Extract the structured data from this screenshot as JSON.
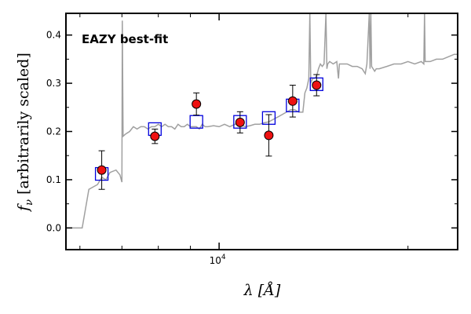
{
  "chart_data": {
    "type": "scatter",
    "ylabel_parts": [
      "f",
      "ν",
      " [arbitrarily scaled]"
    ],
    "xlabel_parts": [
      "λ ",
      "[Å]"
    ],
    "annotation": "EAZY best-fit",
    "xscale": "log",
    "xlim": [
      5700,
      24000
    ],
    "ylim": [
      -0.045,
      0.445
    ],
    "y_ticks": [
      0.0,
      0.1,
      0.2,
      0.3,
      0.4
    ],
    "y_tick_labels": [
      "0.0",
      "0.1",
      "0.2",
      "0.3",
      "0.4"
    ],
    "x_tick_labels": [
      {
        "value": 10000,
        "base": "10",
        "exp": "4"
      }
    ],
    "grid": false,
    "colors": {
      "template": "#a0a0a0",
      "model_box": "#0000dd",
      "observed": "#ee1111",
      "annotation": "#ee1111"
    },
    "series": [
      {
        "kind": "observed",
        "points": [
          {
            "x": 6500,
            "y": 0.12,
            "err": 0.04
          },
          {
            "x": 7900,
            "y": 0.19,
            "err": 0.015
          },
          {
            "x": 9200,
            "y": 0.257,
            "err": 0.023
          },
          {
            "x": 10800,
            "y": 0.219,
            "err": 0.022
          },
          {
            "x": 12000,
            "y": 0.192,
            "err": 0.043
          },
          {
            "x": 13100,
            "y": 0.263,
            "err": 0.033
          },
          {
            "x": 14300,
            "y": 0.296,
            "err": 0.022
          }
        ]
      },
      {
        "kind": "model",
        "points": [
          {
            "x": 6500,
            "y": 0.112
          },
          {
            "x": 7900,
            "y": 0.205
          },
          {
            "x": 9200,
            "y": 0.22
          },
          {
            "x": 10800,
            "y": 0.22
          },
          {
            "x": 12000,
            "y": 0.228
          },
          {
            "x": 13100,
            "y": 0.254
          },
          {
            "x": 14300,
            "y": 0.298
          }
        ]
      },
      {
        "kind": "template",
        "points": [
          [
            5700,
            0.0
          ],
          [
            5900,
            0.0
          ],
          [
            6050,
            0.0
          ],
          [
            6200,
            0.08
          ],
          [
            6300,
            0.085
          ],
          [
            6400,
            0.09
          ],
          [
            6500,
            0.105
          ],
          [
            6600,
            0.1
          ],
          [
            6700,
            0.115
          ],
          [
            6850,
            0.12
          ],
          [
            6950,
            0.11
          ],
          [
            7000,
            0.095
          ],
          [
            7010,
            0.43
          ],
          [
            7030,
            0.19
          ],
          [
            7100,
            0.195
          ],
          [
            7200,
            0.2
          ],
          [
            7300,
            0.21
          ],
          [
            7400,
            0.205
          ],
          [
            7500,
            0.21
          ],
          [
            7600,
            0.21
          ],
          [
            7700,
            0.205
          ],
          [
            7800,
            0.21
          ],
          [
            7900,
            0.21
          ],
          [
            8000,
            0.215
          ],
          [
            8100,
            0.21
          ],
          [
            8200,
            0.215
          ],
          [
            8300,
            0.21
          ],
          [
            8400,
            0.21
          ],
          [
            8500,
            0.205
          ],
          [
            8600,
            0.215
          ],
          [
            8700,
            0.21
          ],
          [
            8800,
            0.21
          ],
          [
            8900,
            0.215
          ],
          [
            9000,
            0.21
          ],
          [
            9100,
            0.21
          ],
          [
            9200,
            0.21
          ],
          [
            9300,
            0.205
          ],
          [
            9400,
            0.215
          ],
          [
            9500,
            0.21
          ],
          [
            9600,
            0.21
          ],
          [
            9800,
            0.212
          ],
          [
            10000,
            0.21
          ],
          [
            10200,
            0.215
          ],
          [
            10400,
            0.21
          ],
          [
            10600,
            0.215
          ],
          [
            10800,
            0.215
          ],
          [
            11000,
            0.21
          ],
          [
            11200,
            0.212
          ],
          [
            11400,
            0.215
          ],
          [
            11600,
            0.215
          ],
          [
            11800,
            0.218
          ],
          [
            12000,
            0.22
          ],
          [
            12200,
            0.225
          ],
          [
            12400,
            0.23
          ],
          [
            12600,
            0.235
          ],
          [
            12800,
            0.24
          ],
          [
            13000,
            0.245
          ],
          [
            13200,
            0.245
          ],
          [
            13400,
            0.24
          ],
          [
            13600,
            0.24
          ],
          [
            13700,
            0.28
          ],
          [
            13800,
            0.29
          ],
          [
            13900,
            0.31
          ],
          [
            13950,
            0.445
          ],
          [
            14000,
            0.3
          ],
          [
            14100,
            0.31
          ],
          [
            14200,
            0.31
          ],
          [
            14300,
            0.315
          ],
          [
            14400,
            0.33
          ],
          [
            14500,
            0.34
          ],
          [
            14600,
            0.335
          ],
          [
            14700,
            0.34
          ],
          [
            14800,
            0.445
          ],
          [
            14850,
            0.33
          ],
          [
            14900,
            0.34
          ],
          [
            15000,
            0.345
          ],
          [
            15200,
            0.34
          ],
          [
            15400,
            0.345
          ],
          [
            15500,
            0.31
          ],
          [
            15550,
            0.34
          ],
          [
            15700,
            0.34
          ],
          [
            16000,
            0.34
          ],
          [
            16300,
            0.335
          ],
          [
            16600,
            0.335
          ],
          [
            16900,
            0.33
          ],
          [
            17100,
            0.32
          ],
          [
            17200,
            0.34
          ],
          [
            17350,
            0.445
          ],
          [
            17400,
            0.33
          ],
          [
            17450,
            0.445
          ],
          [
            17500,
            0.335
          ],
          [
            17600,
            0.33
          ],
          [
            17700,
            0.325
          ],
          [
            17800,
            0.33
          ],
          [
            18000,
            0.33
          ],
          [
            18500,
            0.335
          ],
          [
            19000,
            0.34
          ],
          [
            19500,
            0.34
          ],
          [
            20000,
            0.345
          ],
          [
            20500,
            0.34
          ],
          [
            21000,
            0.345
          ],
          [
            21200,
            0.34
          ],
          [
            21250,
            0.445
          ],
          [
            21300,
            0.345
          ],
          [
            21700,
            0.345
          ],
          [
            22200,
            0.35
          ],
          [
            22700,
            0.35
          ],
          [
            23200,
            0.355
          ],
          [
            23700,
            0.36
          ],
          [
            24000,
            0.36
          ]
        ]
      }
    ]
  }
}
